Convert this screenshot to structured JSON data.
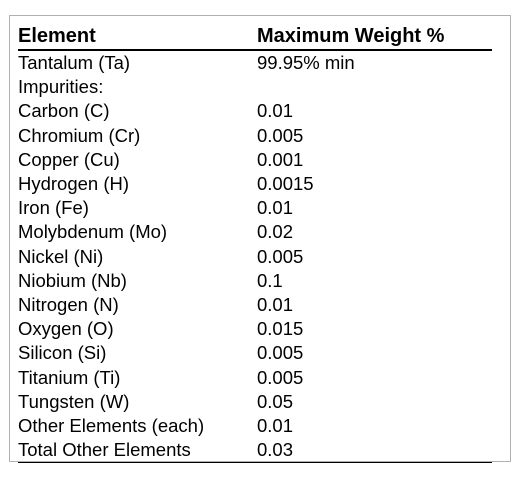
{
  "table": {
    "headers": [
      "Element",
      "Maximum Weight %"
    ],
    "rows": [
      [
        "Tantalum (Ta)",
        "99.95% min"
      ],
      [
        "Impurities:",
        ""
      ],
      [
        "Carbon (C)",
        "0.01"
      ],
      [
        "Chromium (Cr)",
        "0.005"
      ],
      [
        "Copper (Cu)",
        "0.001"
      ],
      [
        "Hydrogen (H)",
        "0.0015"
      ],
      [
        "Iron (Fe)",
        "0.01"
      ],
      [
        "Molybdenum (Mo)",
        "0.02"
      ],
      [
        "Nickel (Ni)",
        "0.005"
      ],
      [
        "Niobium (Nb)",
        "0.1"
      ],
      [
        "Nitrogen (N)",
        "0.01"
      ],
      [
        "Oxygen (O)",
        "0.015"
      ],
      [
        "Silicon (Si)",
        "0.005"
      ],
      [
        "Titanium (Ti)",
        "0.005"
      ],
      [
        "Tungsten (W)",
        "0.05"
      ],
      [
        "Other Elements (each)",
        "0.01"
      ],
      [
        "Total Other Elements",
        "0.03"
      ]
    ]
  }
}
